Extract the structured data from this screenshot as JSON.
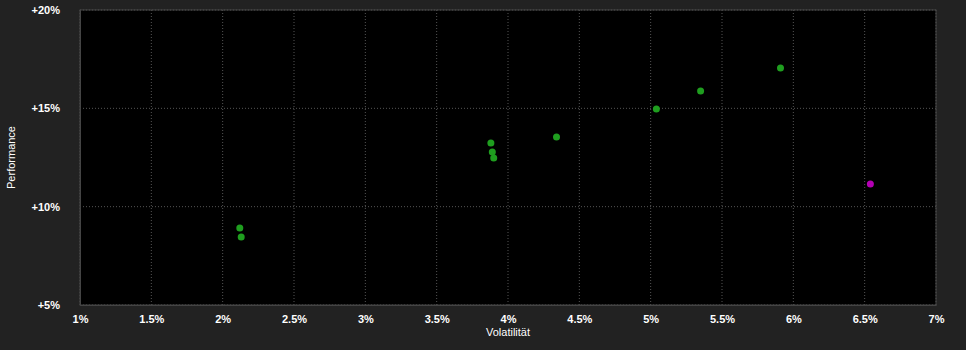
{
  "chart_data": {
    "type": "scatter",
    "x_label": "Volatilität",
    "y_label": "Performance",
    "x": [
      2.12,
      2.13,
      3.88,
      3.89,
      3.9,
      4.34,
      5.04,
      5.35,
      5.91,
      6.54
    ],
    "values": [
      8.92,
      8.46,
      13.24,
      12.78,
      12.48,
      13.54,
      14.97,
      15.88,
      17.05,
      11.15
    ],
    "colors": [
      "#1f9e1f",
      "#1f9e1f",
      "#1f9e1f",
      "#1f9e1f",
      "#1f9e1f",
      "#1f9e1f",
      "#1f9e1f",
      "#1f9e1f",
      "#1f9e1f",
      "#b400b4"
    ],
    "marker": "circle",
    "xlim": [
      1,
      7
    ],
    "ylim": [
      5,
      20
    ],
    "xticks": [
      {
        "value": 1,
        "label": "1%"
      },
      {
        "value": 1.5,
        "label": "1.5%"
      },
      {
        "value": 2,
        "label": "2%"
      },
      {
        "value": 2.5,
        "label": "2.5%"
      },
      {
        "value": 3,
        "label": "3%"
      },
      {
        "value": 3.5,
        "label": "3.5%"
      },
      {
        "value": 4,
        "label": "4%"
      },
      {
        "value": 4.5,
        "label": "4.5%"
      },
      {
        "value": 5,
        "label": "5%"
      },
      {
        "value": 5.5,
        "label": "5.5%"
      },
      {
        "value": 6,
        "label": "6%"
      },
      {
        "value": 6.5,
        "label": "6.5%"
      },
      {
        "value": 7,
        "label": "7%"
      }
    ],
    "yticks": [
      {
        "value": 5,
        "label": "+5%"
      },
      {
        "value": 10,
        "label": "+10%"
      },
      {
        "value": 15,
        "label": "+15%"
      },
      {
        "value": 20,
        "label": "+20%"
      }
    ],
    "grid": true
  }
}
